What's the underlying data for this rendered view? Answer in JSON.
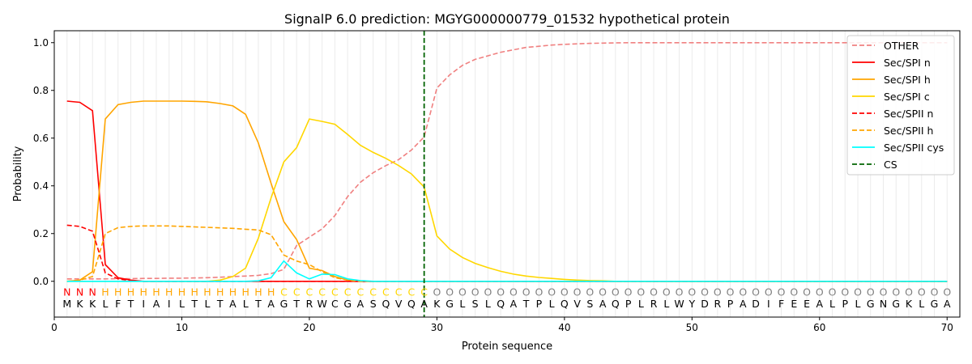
{
  "chart_data": {
    "type": "line",
    "title": "SignalP 6.0 prediction: MGYG000000779_01532 hypothetical protein",
    "xlabel": "Protein sequence",
    "ylabel": "Probability",
    "xlim": [
      0,
      71
    ],
    "ylim": [
      -0.15,
      1.05
    ],
    "xticks": [
      0,
      10,
      20,
      30,
      40,
      50,
      60,
      70
    ],
    "yticks": [
      "0.0",
      "0.2",
      "0.4",
      "0.6",
      "0.8",
      "1.0"
    ],
    "grid": "vertical lines at every residue",
    "legend_position": "top-right",
    "sequence": "MKKLFTIAILTLTALTAGTRWCGASQVQAKGLSLQATPLQVSAQPLRLWYDRPADIFEEALPLGNGKLGA",
    "region_labels": "NNNHHHHHHHHHHHHHHCCCCCCCCCCCCOOOOOOOOOOOOOOOOOOOOOOOOOOOOOOOOOOOOOOOOO",
    "region_label_colors": {
      "N": "#ff0000",
      "H": "#ffa500",
      "C": "#ffd700",
      "O": "#808080"
    },
    "cleavage_site": 29,
    "series": [
      {
        "name": "OTHER",
        "color": "#f08080",
        "dash": true,
        "values": [
          0.01,
          0.01,
          0.01,
          0.01,
          0.011,
          0.011,
          0.012,
          0.012,
          0.013,
          0.013,
          0.014,
          0.015,
          0.017,
          0.02,
          0.022,
          0.025,
          0.032,
          0.05,
          0.15,
          0.185,
          0.22,
          0.275,
          0.355,
          0.415,
          0.455,
          0.485,
          0.51,
          0.55,
          0.605,
          0.81,
          0.865,
          0.905,
          0.93,
          0.945,
          0.96,
          0.97,
          0.98,
          0.985,
          0.99,
          0.993,
          0.995,
          0.997,
          0.998,
          0.999,
          1,
          1,
          1,
          1,
          1,
          1,
          1,
          1,
          1,
          1,
          1,
          1,
          1,
          1,
          1,
          1,
          1,
          1,
          1,
          1,
          1,
          1,
          1,
          1,
          1,
          1
        ]
      },
      {
        "name": "Sec/SPI n",
        "color": "#ff0000",
        "dash": false,
        "values": [
          0.755,
          0.75,
          0.715,
          0.07,
          0.015,
          0.005,
          0,
          0,
          0,
          0,
          0,
          0,
          0,
          0,
          0,
          0,
          0,
          0,
          0,
          0,
          0,
          0,
          0,
          0,
          0,
          0,
          0,
          0,
          0,
          0,
          0,
          0,
          0,
          0,
          0,
          0,
          0,
          0,
          0,
          0,
          0,
          0,
          0,
          0,
          0,
          0,
          0,
          0,
          0,
          0,
          0,
          0,
          0,
          0,
          0,
          0,
          0,
          0,
          0,
          0,
          0,
          0,
          0,
          0,
          0,
          0,
          0,
          0,
          0,
          0
        ]
      },
      {
        "name": "Sec/SPI h",
        "color": "#ffa500",
        "dash": false,
        "values": [
          0,
          0.005,
          0.04,
          0.68,
          0.74,
          0.75,
          0.755,
          0.755,
          0.755,
          0.755,
          0.754,
          0.752,
          0.745,
          0.735,
          0.7,
          0.58,
          0.41,
          0.25,
          0.175,
          0.055,
          0.045,
          0.02,
          0.005,
          0,
          0,
          0,
          0,
          0,
          0,
          0,
          0,
          0,
          0,
          0,
          0,
          0,
          0,
          0,
          0,
          0,
          0,
          0,
          0,
          0,
          0,
          0,
          0,
          0,
          0,
          0,
          0,
          0,
          0,
          0,
          0,
          0,
          0,
          0,
          0,
          0,
          0,
          0,
          0,
          0,
          0,
          0,
          0,
          0,
          0,
          0
        ]
      },
      {
        "name": "Sec/SPI c",
        "color": "#ffd700",
        "dash": false,
        "values": [
          0,
          0,
          0,
          0,
          0,
          0,
          0,
          0,
          0,
          0,
          0,
          0,
          0.005,
          0.02,
          0.055,
          0.18,
          0.35,
          0.5,
          0.56,
          0.68,
          0.67,
          0.658,
          0.615,
          0.57,
          0.54,
          0.515,
          0.485,
          0.45,
          0.395,
          0.19,
          0.135,
          0.1,
          0.075,
          0.057,
          0.042,
          0.03,
          0.022,
          0.016,
          0.012,
          0.008,
          0.005,
          0.003,
          0.002,
          0,
          0,
          0,
          0,
          0,
          0,
          0,
          0,
          0,
          0,
          0,
          0,
          0,
          0,
          0,
          0,
          0,
          0,
          0,
          0,
          0,
          0,
          0,
          0,
          0,
          0,
          0
        ]
      },
      {
        "name": "Sec/SPII n",
        "color": "#ff0000",
        "dash": true,
        "values": [
          0.235,
          0.23,
          0.21,
          0.035,
          0.01,
          0.003,
          0,
          0,
          0,
          0,
          0,
          0,
          0,
          0,
          0,
          0,
          0,
          0,
          0,
          0,
          0,
          0,
          0,
          0,
          0,
          0,
          0,
          0,
          0,
          0,
          0,
          0,
          0,
          0,
          0,
          0,
          0,
          0,
          0,
          0,
          0,
          0,
          0,
          0,
          0,
          0,
          0,
          0,
          0,
          0,
          0,
          0,
          0,
          0,
          0,
          0,
          0,
          0,
          0,
          0,
          0,
          0,
          0,
          0,
          0,
          0,
          0,
          0,
          0,
          0
        ]
      },
      {
        "name": "Sec/SPII h",
        "color": "#ffa500",
        "dash": true,
        "values": [
          0,
          0.005,
          0.02,
          0.2,
          0.225,
          0.23,
          0.232,
          0.232,
          0.232,
          0.23,
          0.228,
          0.226,
          0.224,
          0.222,
          0.218,
          0.215,
          0.195,
          0.11,
          0.085,
          0.07,
          0.04,
          0.015,
          0.005,
          0,
          0,
          0,
          0,
          0,
          0,
          0,
          0,
          0,
          0,
          0,
          0,
          0,
          0,
          0,
          0,
          0,
          0,
          0,
          0,
          0,
          0,
          0,
          0,
          0,
          0,
          0,
          0,
          0,
          0,
          0,
          0,
          0,
          0,
          0,
          0,
          0,
          0,
          0,
          0,
          0,
          0,
          0,
          0,
          0,
          0,
          0
        ]
      },
      {
        "name": "Sec/SPII cys",
        "color": "#00ffff",
        "dash": false,
        "values": [
          0,
          0,
          0,
          0,
          0,
          0,
          0,
          0,
          0,
          0,
          0,
          0,
          0,
          0,
          0,
          0.002,
          0.015,
          0.085,
          0.035,
          0.01,
          0.03,
          0.028,
          0.01,
          0.003,
          0,
          0,
          0,
          0,
          0,
          0,
          0,
          0,
          0,
          0,
          0,
          0,
          0,
          0,
          0,
          0,
          0,
          0,
          0,
          0,
          0,
          0,
          0,
          0,
          0,
          0,
          0,
          0,
          0,
          0,
          0,
          0,
          0,
          0,
          0,
          0,
          0,
          0,
          0,
          0,
          0,
          0,
          0,
          0,
          0,
          0
        ]
      }
    ],
    "cs_legend": {
      "name": "CS",
      "color": "#006400"
    }
  }
}
